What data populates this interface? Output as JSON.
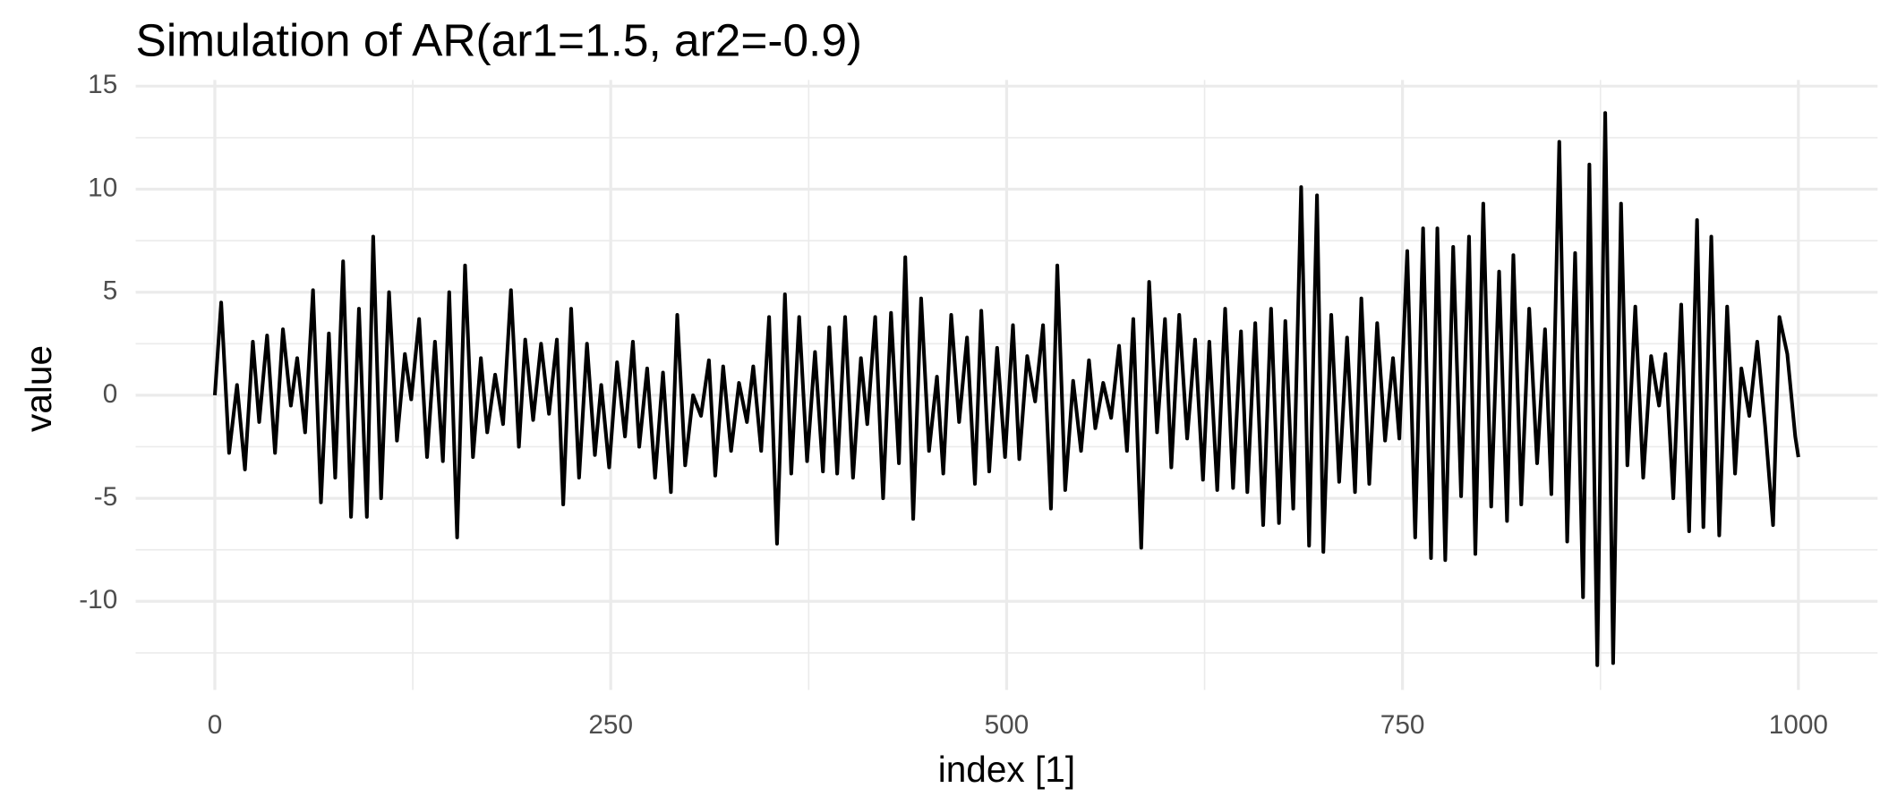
{
  "chart_data": {
    "type": "line",
    "title": "Simulation of AR(ar1=1.5, ar2=-0.9)",
    "xlabel": "index [1]",
    "ylabel": "value",
    "xlim": [
      -50,
      1050
    ],
    "ylim": [
      -14.3,
      15.3
    ],
    "xticks": [
      0,
      250,
      500,
      750,
      1000
    ],
    "yticks": [
      -10,
      -5,
      0,
      5,
      10,
      15
    ],
    "xminor": [
      125,
      375,
      625,
      875
    ],
    "yminor": [
      -12.5,
      -7.5,
      -2.5,
      2.5,
      7.5,
      12.5
    ],
    "grid": true,
    "series": [
      {
        "color": "#000000",
        "x": [
          0,
          4,
          9,
          14,
          19,
          24,
          28,
          33,
          38,
          43,
          48,
          52,
          57,
          62,
          67,
          72,
          76,
          81,
          86,
          91,
          96,
          100,
          105,
          110,
          115,
          120,
          124,
          129,
          134,
          139,
          144,
          148,
          153,
          158,
          163,
          168,
          172,
          177,
          182,
          187,
          192,
          196,
          201,
          206,
          211,
          216,
          220,
          225,
          230,
          235,
          240,
          244,
          249,
          254,
          259,
          264,
          268,
          273,
          278,
          283,
          288,
          292,
          297,
          302,
          307,
          312,
          316,
          321,
          326,
          331,
          336,
          340,
          345,
          350,
          355,
          360,
          364,
          369,
          374,
          379,
          384,
          388,
          393,
          398,
          403,
          408,
          412,
          417,
          422,
          427,
          432,
          436,
          441,
          446,
          451,
          456,
          460,
          465,
          470,
          475,
          480,
          484,
          489,
          494,
          499,
          504,
          508,
          513,
          518,
          523,
          528,
          532,
          537,
          542,
          547,
          552,
          556,
          561,
          566,
          571,
          576,
          580,
          585,
          590,
          595,
          600,
          604,
          609,
          614,
          619,
          624,
          628,
          633,
          638,
          643,
          648,
          652,
          657,
          662,
          667,
          672,
          676,
          681,
          686,
          691,
          696,
          700,
          705,
          710,
          715,
          720,
          724,
          729,
          734,
          739,
          744,
          748,
          753,
          758,
          763,
          768,
          772,
          777,
          782,
          787,
          792,
          796,
          801,
          806,
          811,
          816,
          820,
          825,
          830,
          835,
          840,
          844,
          849,
          854,
          859,
          864,
          868,
          873,
          878,
          883,
          888,
          892,
          897,
          902,
          907,
          912,
          916,
          921,
          926,
          931,
          936,
          940,
          945,
          950,
          955,
          960,
          964,
          969,
          974,
          979,
          984,
          988,
          993,
          998,
          1000
        ],
        "values": [
          0,
          4.5,
          -2.8,
          0.5,
          -3.6,
          2.6,
          -1.3,
          2.9,
          -2.8,
          3.2,
          -0.5,
          1.8,
          -1.8,
          5.1,
          -5.2,
          3.0,
          -4.0,
          6.5,
          -5.9,
          4.2,
          -5.9,
          7.7,
          -5.0,
          5.0,
          -2.2,
          2.0,
          -0.2,
          3.7,
          -3.0,
          2.6,
          -3.2,
          5.0,
          -6.9,
          6.3,
          -3.0,
          1.8,
          -1.8,
          1.0,
          -1.4,
          5.1,
          -2.5,
          2.7,
          -1.2,
          2.5,
          -0.9,
          2.7,
          -5.3,
          4.2,
          -4.0,
          2.5,
          -2.9,
          0.5,
          -3.5,
          1.6,
          -2.0,
          2.6,
          -2.5,
          1.3,
          -4.0,
          1.1,
          -4.7,
          3.9,
          -3.4,
          0.0,
          -1.0,
          1.7,
          -3.9,
          1.4,
          -2.7,
          0.6,
          -1.3,
          1.4,
          -2.7,
          3.8,
          -7.2,
          4.9,
          -3.8,
          3.8,
          -3.2,
          2.1,
          -3.7,
          3.3,
          -3.8,
          3.8,
          -4.0,
          1.8,
          -1.4,
          3.8,
          -5.0,
          4.0,
          -3.3,
          6.7,
          -6.0,
          4.7,
          -2.7,
          0.9,
          -3.8,
          3.9,
          -1.3,
          2.8,
          -4.3,
          4.1,
          -3.7,
          2.3,
          -3.0,
          3.4,
          -3.1,
          1.9,
          -0.3,
          3.4,
          -5.5,
          6.3,
          -4.6,
          0.7,
          -2.7,
          1.7,
          -1.6,
          0.6,
          -1.1,
          2.4,
          -2.7,
          3.7,
          -7.4,
          5.5,
          -1.8,
          3.7,
          -3.5,
          3.9,
          -2.1,
          2.7,
          -4.1,
          2.6,
          -4.6,
          4.2,
          -4.5,
          3.1,
          -4.7,
          3.5,
          -6.3,
          4.2,
          -6.2,
          3.6,
          -5.5,
          10.1,
          -7.3,
          9.7,
          -7.6,
          3.9,
          -4.2,
          2.8,
          -4.7,
          4.7,
          -4.3,
          3.5,
          -2.2,
          1.8,
          -2.1,
          7.0,
          -6.9,
          8.1,
          -7.9,
          8.1,
          -8.0,
          7.2,
          -4.9,
          7.7,
          -7.7,
          9.3,
          -5.4,
          6.0,
          -6.1,
          6.8,
          -5.3,
          4.2,
          -3.3,
          3.2,
          -4.8,
          12.3,
          -7.1,
          6.9,
          -9.8,
          11.2,
          -13.1,
          13.7,
          -13.0,
          9.3,
          -3.4,
          4.3,
          -4.0,
          1.9,
          -0.5,
          2.0,
          -5.0,
          4.4,
          -6.6,
          8.5,
          -6.4,
          7.7,
          -6.8,
          4.3,
          -3.8,
          1.3,
          -1.0,
          2.6,
          -1.5,
          -6.3,
          3.8,
          2.0,
          -2.0,
          -3.0
        ]
      }
    ]
  }
}
